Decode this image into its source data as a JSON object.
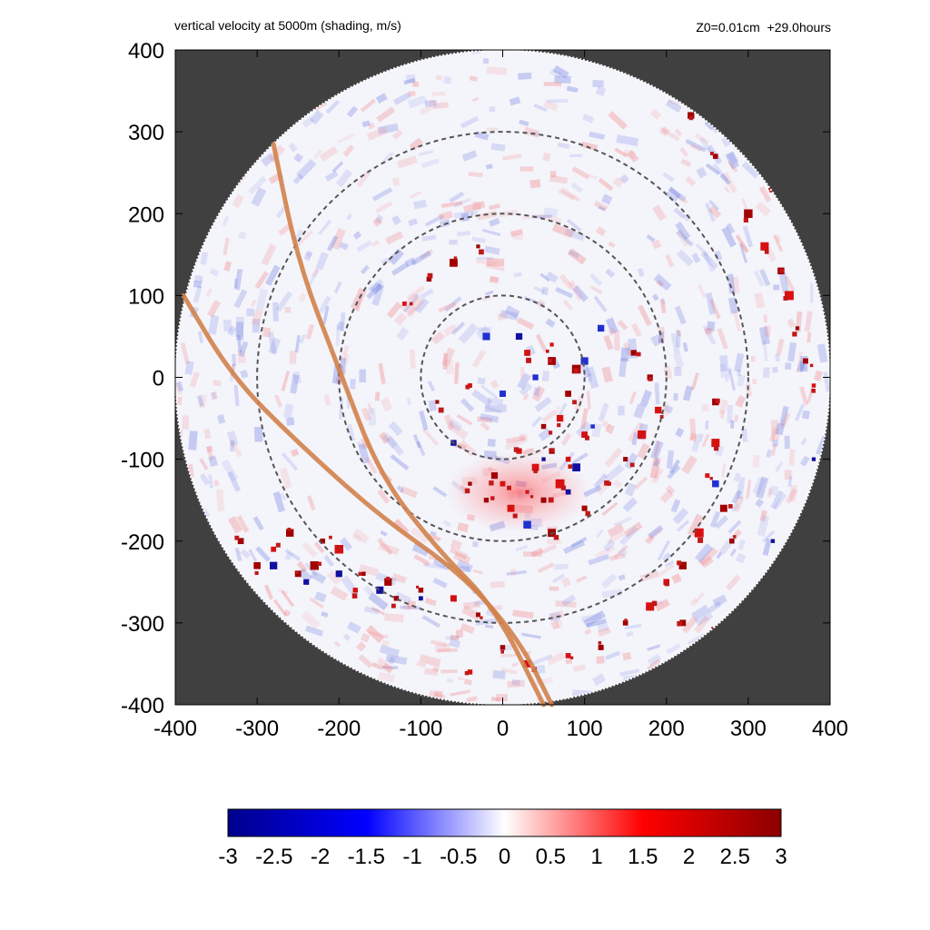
{
  "header": {
    "title_left": "vertical velocity at 5000m (shading, m/s)",
    "title_right": "Z0=0.01cm  +29.0hours"
  },
  "chart_data": {
    "type": "heatmap",
    "title": "vertical velocity at 5000m (shading, m/s)",
    "subtitle": "Z0=0.01cm  +29.0hours",
    "xlabel": "",
    "ylabel": "",
    "xlim": [
      -400,
      400
    ],
    "ylim": [
      -400,
      400
    ],
    "xticks": [
      "-400",
      "-300",
      "-200",
      "-100",
      "0",
      "100",
      "200",
      "300",
      "400"
    ],
    "yticks": [
      "400",
      "300",
      "200",
      "100",
      "0",
      "-100",
      "-200",
      "-300",
      "-400"
    ],
    "background_color": "#404040",
    "domain_radius": 400,
    "dashed_circle_radii": [
      100,
      200,
      300
    ],
    "tracks": [
      {
        "points": [
          [
            -280,
            285
          ],
          [
            -250,
            140
          ],
          [
            -200,
            10
          ],
          [
            -150,
            -120
          ],
          [
            -80,
            -210
          ],
          [
            -10,
            -280
          ],
          [
            50,
            -400
          ]
        ]
      },
      {
        "points": [
          [
            -390,
            100
          ],
          [
            -330,
            0
          ],
          [
            -250,
            -80
          ],
          [
            -150,
            -170
          ],
          [
            -50,
            -240
          ],
          [
            20,
            -320
          ],
          [
            60,
            -400
          ]
        ]
      }
    ],
    "track_color": "#d2824b",
    "colorbar": {
      "min": -3,
      "max": 3,
      "tick_labels": [
        "-3",
        "-2.5",
        "-2",
        "-1.5",
        "-1",
        "-0.5",
        "0",
        "0.5",
        "1",
        "1.5",
        "2",
        "2.5",
        "3"
      ],
      "colors": [
        "#00008b",
        "#0000ff",
        "#ffffff",
        "#ff0000",
        "#8b0000"
      ]
    },
    "updraft_cells": [
      [
        60,
        -90
      ],
      [
        80,
        -100
      ],
      [
        20,
        -90
      ],
      [
        40,
        -110
      ],
      [
        70,
        -50
      ],
      [
        80,
        -20
      ],
      [
        60,
        20
      ],
      [
        90,
        10
      ],
      [
        30,
        30
      ],
      [
        60,
        40
      ],
      [
        -10,
        -120
      ],
      [
        30,
        -140
      ],
      [
        0,
        -130
      ],
      [
        50,
        -150
      ],
      [
        -20,
        -150
      ],
      [
        -40,
        -130
      ],
      [
        10,
        -160
      ],
      [
        70,
        -130
      ],
      [
        160,
        30
      ],
      [
        180,
        0
      ],
      [
        190,
        -40
      ],
      [
        170,
        -70
      ],
      [
        150,
        -100
      ],
      [
        130,
        -130
      ],
      [
        100,
        -160
      ],
      [
        60,
        -190
      ],
      [
        260,
        -30
      ],
      [
        260,
        -80
      ],
      [
        250,
        -120
      ],
      [
        270,
        -160
      ],
      [
        240,
        -190
      ],
      [
        220,
        -230
      ],
      [
        280,
        -200
      ],
      [
        200,
        -250
      ],
      [
        300,
        200
      ],
      [
        320,
        160
      ],
      [
        340,
        130
      ],
      [
        350,
        100
      ],
      [
        360,
        60
      ],
      [
        370,
        20
      ],
      [
        380,
        -10
      ],
      [
        330,
        230
      ],
      [
        260,
        270
      ],
      [
        230,
        320
      ],
      [
        200,
        350
      ],
      [
        -200,
        -210
      ],
      [
        -230,
        -230
      ],
      [
        -250,
        -240
      ],
      [
        -280,
        -210
      ],
      [
        -300,
        -230
      ],
      [
        -320,
        -200
      ],
      [
        -170,
        -240
      ],
      [
        -140,
        -250
      ],
      [
        -100,
        -260
      ],
      [
        -60,
        -270
      ],
      [
        -30,
        -290
      ],
      [
        -130,
        -270
      ],
      [
        -180,
        -260
      ],
      [
        -220,
        -200
      ],
      [
        -260,
        -190
      ],
      [
        0,
        -330
      ],
      [
        30,
        -350
      ],
      [
        -40,
        -360
      ],
      [
        80,
        -340
      ],
      [
        120,
        -330
      ],
      [
        150,
        -300
      ],
      [
        180,
        -280
      ],
      [
        220,
        -300
      ],
      [
        260,
        -310
      ],
      [
        300,
        -280
      ],
      [
        -30,
        160
      ],
      [
        -60,
        140
      ],
      [
        -90,
        120
      ],
      [
        -120,
        90
      ],
      [
        50,
        -60
      ],
      [
        100,
        -70
      ],
      [
        -80,
        -30
      ],
      [
        -40,
        -10
      ]
    ],
    "downdraft_cells": [
      [
        20,
        50
      ],
      [
        40,
        0
      ],
      [
        50,
        -100
      ],
      [
        90,
        -110
      ],
      [
        100,
        20
      ],
      [
        -20,
        50
      ],
      [
        110,
        -60
      ],
      [
        0,
        -20
      ],
      [
        -240,
        -250
      ],
      [
        -200,
        -240
      ],
      [
        -150,
        -260
      ],
      [
        -100,
        -270
      ],
      [
        -280,
        -230
      ],
      [
        260,
        -130
      ],
      [
        380,
        -100
      ],
      [
        330,
        -200
      ],
      [
        120,
        60
      ],
      [
        -60,
        -80
      ],
      [
        80,
        -140
      ],
      [
        30,
        -180
      ]
    ]
  }
}
